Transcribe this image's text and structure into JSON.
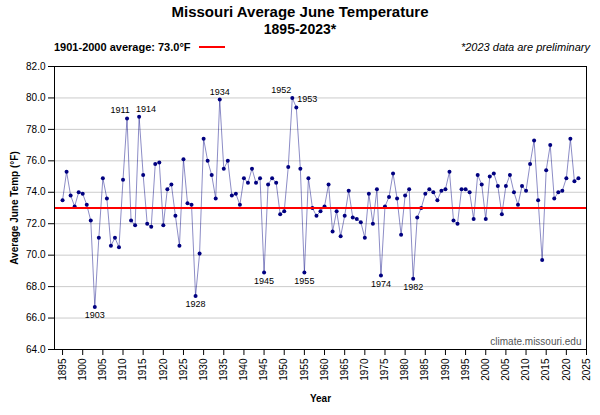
{
  "chart_data": {
    "type": "line",
    "title": "Missouri Average June Temperature",
    "subtitle": "1895-2023*",
    "xlabel": "Year",
    "ylabel": "Average June Temp (°F)",
    "x": [
      1895,
      1896,
      1897,
      1898,
      1899,
      1900,
      1901,
      1902,
      1903,
      1904,
      1905,
      1906,
      1907,
      1908,
      1909,
      1910,
      1911,
      1912,
      1913,
      1914,
      1915,
      1916,
      1917,
      1918,
      1919,
      1920,
      1921,
      1922,
      1923,
      1924,
      1925,
      1926,
      1927,
      1928,
      1929,
      1930,
      1931,
      1932,
      1933,
      1934,
      1935,
      1936,
      1937,
      1938,
      1939,
      1940,
      1941,
      1942,
      1943,
      1944,
      1945,
      1946,
      1947,
      1948,
      1949,
      1950,
      1951,
      1952,
      1953,
      1954,
      1955,
      1956,
      1957,
      1958,
      1959,
      1960,
      1961,
      1962,
      1963,
      1964,
      1965,
      1966,
      1967,
      1968,
      1969,
      1970,
      1971,
      1972,
      1973,
      1974,
      1975,
      1976,
      1977,
      1978,
      1979,
      1980,
      1981,
      1982,
      1983,
      1984,
      1985,
      1986,
      1987,
      1988,
      1989,
      1990,
      1991,
      1992,
      1993,
      1994,
      1995,
      1996,
      1997,
      1998,
      1999,
      2000,
      2001,
      2002,
      2003,
      2004,
      2005,
      2006,
      2007,
      2008,
      2009,
      2010,
      2011,
      2012,
      2013,
      2014,
      2015,
      2016,
      2017,
      2018,
      2019,
      2020,
      2021,
      2022,
      2023
    ],
    "series": [
      {
        "color": "#000080",
        "marker": "circle",
        "values": [
          73.5,
          75.3,
          73.8,
          73.1,
          74.0,
          73.9,
          73.2,
          72.2,
          66.7,
          71.1,
          74.9,
          73.6,
          70.6,
          71.1,
          70.5,
          74.8,
          78.7,
          72.2,
          71.9,
          78.8,
          75.1,
          72.0,
          71.8,
          75.8,
          75.9,
          71.9,
          74.2,
          74.5,
          72.5,
          70.6,
          76.1,
          73.3,
          73.2,
          67.4,
          70.1,
          77.4,
          76.0,
          75.1,
          73.6,
          79.9,
          75.5,
          76.0,
          73.8,
          73.9,
          73.2,
          74.9,
          74.6,
          75.5,
          74.6,
          74.9,
          68.9,
          74.5,
          74.9,
          74.6,
          72.6,
          72.8,
          75.6,
          80.0,
          79.4,
          75.5,
          68.9,
          74.9,
          73.0,
          72.5,
          72.8,
          73.1,
          74.5,
          71.5,
          72.8,
          71.2,
          72.5,
          74.1,
          72.4,
          72.3,
          72.1,
          71.1,
          73.9,
          72.0,
          74.2,
          68.7,
          73.1,
          73.7,
          75.2,
          73.6,
          71.3,
          73.8,
          74.2,
          68.5,
          72.4,
          73.0,
          73.9,
          74.2,
          74.0,
          73.5,
          74.1,
          74.2,
          75.3,
          72.2,
          72.0,
          74.2,
          74.2,
          74.0,
          72.3,
          75.1,
          74.5,
          72.3,
          75.0,
          75.2,
          74.4,
          72.6,
          74.4,
          75.1,
          74.0,
          73.2,
          74.4,
          74.1,
          75.8,
          77.3,
          73.5,
          69.7,
          75.4,
          77.0,
          73.6,
          74.0,
          74.1,
          74.9,
          77.4,
          74.7,
          74.9
        ]
      }
    ],
    "xlim": [
      1893,
      2025
    ],
    "xticks": [
      1895,
      1900,
      1905,
      1910,
      1915,
      1920,
      1925,
      1930,
      1935,
      1940,
      1945,
      1950,
      1955,
      1960,
      1965,
      1970,
      1975,
      1980,
      1985,
      1990,
      1995,
      2000,
      2005,
      2010,
      2015,
      2020,
      2025
    ],
    "ylim": [
      64,
      82
    ],
    "yticks": [
      {
        "value": 64,
        "label": "64.0"
      },
      {
        "value": 66,
        "label": "66.0"
      },
      {
        "value": 68,
        "label": "68.0"
      },
      {
        "value": 70,
        "label": "70.0"
      },
      {
        "value": 72,
        "label": "72.0"
      },
      {
        "value": 74,
        "label": "74.0"
      },
      {
        "value": 76,
        "label": "76.0"
      },
      {
        "value": 78,
        "label": "78.0"
      },
      {
        "value": 80,
        "label": "80.0"
      },
      {
        "value": 82,
        "label": "82.0"
      }
    ],
    "grid": "y",
    "average": {
      "value": 73.0,
      "label": "1901-2000 average: 73.0°F",
      "color": "#FF0000"
    },
    "annotations": [
      {
        "x": 1903,
        "y": 66.7,
        "label": "1903"
      },
      {
        "x": 1911,
        "y": 78.7,
        "label": "1911"
      },
      {
        "x": 1914,
        "y": 78.8,
        "label": "1914"
      },
      {
        "x": 1928,
        "y": 67.4,
        "label": "1928"
      },
      {
        "x": 1934,
        "y": 79.9,
        "label": "1934"
      },
      {
        "x": 1945,
        "y": 68.9,
        "label": "1945"
      },
      {
        "x": 1952,
        "y": 80.0,
        "label": "1952"
      },
      {
        "x": 1953,
        "y": 79.4,
        "label": "1953"
      },
      {
        "x": 1955,
        "y": 68.9,
        "label": "1955"
      },
      {
        "x": 1974,
        "y": 68.7,
        "label": "1974"
      },
      {
        "x": 1982,
        "y": 68.5,
        "label": "1982"
      }
    ],
    "note": "*2023 data are preliminary",
    "watermark": "climate.missouri.edu"
  }
}
